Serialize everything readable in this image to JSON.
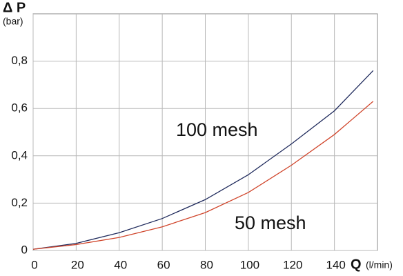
{
  "chart_data": {
    "type": "line",
    "y_label": "Δ P",
    "y_unit": "(bar)",
    "x_label": "Q",
    "x_unit": "(l/min)",
    "x": [
      0,
      20,
      40,
      60,
      80,
      100,
      120,
      140,
      158
    ],
    "series": [
      {
        "name": "100 mesh",
        "color": "#1f2a5c",
        "values": [
          0.005,
          0.03,
          0.075,
          0.135,
          0.215,
          0.32,
          0.45,
          0.59,
          0.76
        ]
      },
      {
        "name": "50 mesh",
        "color": "#d0442a",
        "values": [
          0.005,
          0.025,
          0.055,
          0.1,
          0.16,
          0.245,
          0.36,
          0.49,
          0.63
        ]
      }
    ],
    "xlim": [
      0,
      160
    ],
    "xticks": [
      0,
      20,
      40,
      60,
      80,
      100,
      120,
      140
    ],
    "ylim": [
      0,
      1
    ],
    "yticks": [
      0,
      {
        "value": 0.2,
        "label": "0,2"
      },
      {
        "value": 0.4,
        "label": "0,4"
      },
      {
        "value": 0.6,
        "label": "0,6"
      },
      {
        "value": 0.8,
        "label": "0,8"
      }
    ],
    "grid": true
  }
}
